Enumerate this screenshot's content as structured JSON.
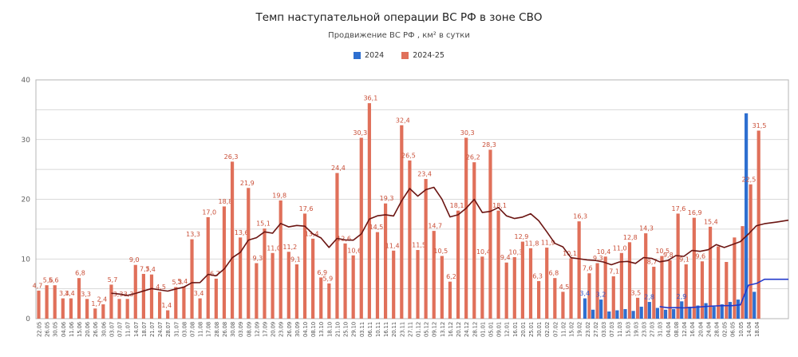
{
  "header": {
    "title": "Темп наступательной операции ВС РФ в зоне СВО",
    "subtitle": "Продвижение ВС РФ , км² в сутки"
  },
  "legend": [
    {
      "label": "2024",
      "color": "#2e6fd0"
    },
    {
      "label": "2024-25",
      "color": "#e0705a"
    }
  ],
  "chart_data": {
    "type": "bar",
    "title": "Темп наступательной операции ВС РФ в зоне СВО",
    "subtitle": "Продвижение ВС РФ , км² в сутки",
    "ylim": [
      0,
      40
    ],
    "y_ticks": [
      0,
      10,
      20,
      30,
      40
    ],
    "grid_step": 5,
    "grid": "on",
    "legend_position": "top-center",
    "categories": [
      "22.05",
      "26.05",
      "30.05",
      "04.06",
      "11.06",
      "15.06",
      "20.06",
      "26.06",
      "30.06",
      "03.07",
      "07.07",
      "11.07",
      "14.07",
      "18.07",
      "21.07",
      "24.07",
      "28.07",
      "31.07",
      "03.08",
      "07.08",
      "11.08",
      "17.08",
      "28.08",
      "26.08",
      "30.08",
      "03.09",
      "08.09",
      "12.09",
      "17.09",
      "20.09",
      "23.09",
      "26.09",
      "30.09",
      "04.10",
      "08.10",
      "13.10",
      "18.10",
      "21.10",
      "25.10",
      "29.10",
      "03.11",
      "06.11",
      "10.11",
      "16.11",
      "20.11",
      "23.11",
      "27.11",
      "01.12",
      "05.12",
      "09.12",
      "13.12",
      "16.12",
      "20.12",
      "24.12",
      "28.12",
      "01.01",
      "05.01",
      "09.01",
      "12.01",
      "16.01",
      "20.01",
      "25.01",
      "30.01",
      "02.02",
      "07.02",
      "11.02",
      "15.02",
      "19.02",
      "23.02",
      "27.02",
      "03.03",
      "07.03",
      "11.03",
      "15.03",
      "19.03",
      "23.03",
      "27.03",
      "31.03",
      "04.04",
      "08.08",
      "12.04",
      "16.04",
      "20.04",
      "24.04",
      "28.04",
      "02.05",
      "06.05",
      "10.05",
      "14.04",
      "18.04"
    ],
    "series": [
      {
        "name": "2024",
        "color": "#2e6fd0",
        "label_color": "#3056c8",
        "values": [
          null,
          null,
          null,
          null,
          null,
          null,
          null,
          null,
          null,
          null,
          null,
          null,
          null,
          null,
          null,
          null,
          null,
          null,
          null,
          null,
          null,
          null,
          null,
          null,
          null,
          null,
          null,
          null,
          null,
          null,
          null,
          null,
          null,
          null,
          null,
          null,
          null,
          null,
          null,
          null,
          null,
          null,
          null,
          null,
          null,
          null,
          null,
          null,
          null,
          null,
          null,
          null,
          null,
          null,
          null,
          null,
          null,
          null,
          null,
          null,
          null,
          null,
          null,
          null,
          null,
          null,
          null,
          null,
          3.4,
          1.5,
          3.2,
          1.2,
          1.4,
          1.6,
          1.3,
          2.0,
          2.8,
          1.8,
          1.5,
          1.6,
          2.9,
          2.0,
          2.2,
          2.6,
          2.0,
          2.4,
          2.8,
          3.2,
          34.4,
          4.5
        ],
        "labels": {
          "68": "3,4",
          "70": "3,2",
          "76": "2,8",
          "80": "2,9"
        }
      },
      {
        "name": "2024-25",
        "color": "#e0705a",
        "label_color": "#c94f38",
        "values": [
          4.7,
          5.6,
          5.6,
          3.4,
          3.4,
          6.8,
          3.3,
          1.7,
          2.4,
          5.7,
          3.3,
          3.3,
          9.0,
          7.5,
          7.4,
          4.5,
          1.4,
          5.3,
          5.4,
          13.3,
          3.4,
          17.0,
          6.7,
          18.8,
          26.3,
          13.6,
          21.9,
          9.3,
          15.1,
          11.0,
          19.8,
          11.2,
          9.1,
          17.6,
          13.4,
          6.9,
          5.9,
          24.4,
          12.6,
          10.6,
          30.3,
          36.1,
          14.5,
          19.3,
          11.4,
          32.4,
          26.5,
          11.5,
          23.4,
          14.7,
          10.5,
          6.2,
          18.1,
          30.3,
          26.2,
          10.4,
          28.3,
          18.1,
          9.4,
          10.3,
          12.9,
          11.8,
          6.3,
          11.9,
          6.8,
          4.5,
          10.1,
          16.3,
          7.6,
          9.3,
          10.4,
          7.1,
          11.0,
          12.8,
          3.5,
          14.3,
          8.7,
          10.5,
          9.8,
          17.6,
          9.1,
          16.9,
          9.6,
          15.4,
          12.1,
          9.5,
          13.6,
          15.5,
          22.5,
          31.5
        ],
        "labels": [
          "4,7",
          "5,6",
          "5,6",
          "3,4",
          "3,4",
          "6,8",
          "3,3",
          "1,7",
          "2,4",
          "5,7",
          "3,3",
          "3,3",
          "9,0",
          "7,5",
          "7,4",
          "4,5",
          "1,4",
          "5,3",
          "5,4",
          "13,3",
          "3,4",
          "17,0",
          "6,7",
          "18,8",
          "26,3",
          "13,6",
          "21,9",
          "9,3",
          "15,1",
          "11,0",
          "19,8",
          "11,2",
          "9,1",
          "17,6",
          "13,4",
          "6,9",
          "5,9",
          "24,4",
          "12,6",
          "10,6",
          "30,3",
          "36,1",
          "14,5",
          "19,3",
          "11,4",
          "32,4",
          "26,5",
          "11,5",
          "23,4",
          "14,7",
          "10,5",
          "6,2",
          "18,1",
          "30,3",
          "26,2",
          "10,4",
          "28,3",
          "18,1",
          "9,4",
          "10,3",
          "12,9",
          "11,8",
          "6,3",
          "11,9",
          "6,8",
          "4,5",
          "10,1",
          "16,3",
          "7,6",
          "9,3",
          "10,4",
          "7,1",
          "11,0",
          "12,8",
          "3,5",
          "14,3",
          "8,7",
          "10,5",
          "9,8",
          "17,6",
          "9,1",
          "16,9",
          "9,6",
          "15,4",
          "",
          "",
          "",
          "",
          "22,5",
          "31,5"
        ]
      }
    ],
    "lines": [
      {
        "name": "ma10-2024-25",
        "source": "2024-25",
        "window": 10,
        "color": "#6b1512",
        "extension": [
          [
            958,
            15.9
          ],
          [
            974,
            16.2
          ],
          [
            988,
            16.5
          ]
        ]
      },
      {
        "name": "ma10-2024",
        "source": "2024",
        "window": 10,
        "color": "#2339cb",
        "extension": [
          [
            958,
            6.6
          ],
          [
            988,
            6.6
          ]
        ]
      }
    ]
  },
  "colors": {
    "grid": "#cdcdcd",
    "frame": "#b5b5b5",
    "tick_text": "#616161",
    "date_text": "#555555"
  }
}
